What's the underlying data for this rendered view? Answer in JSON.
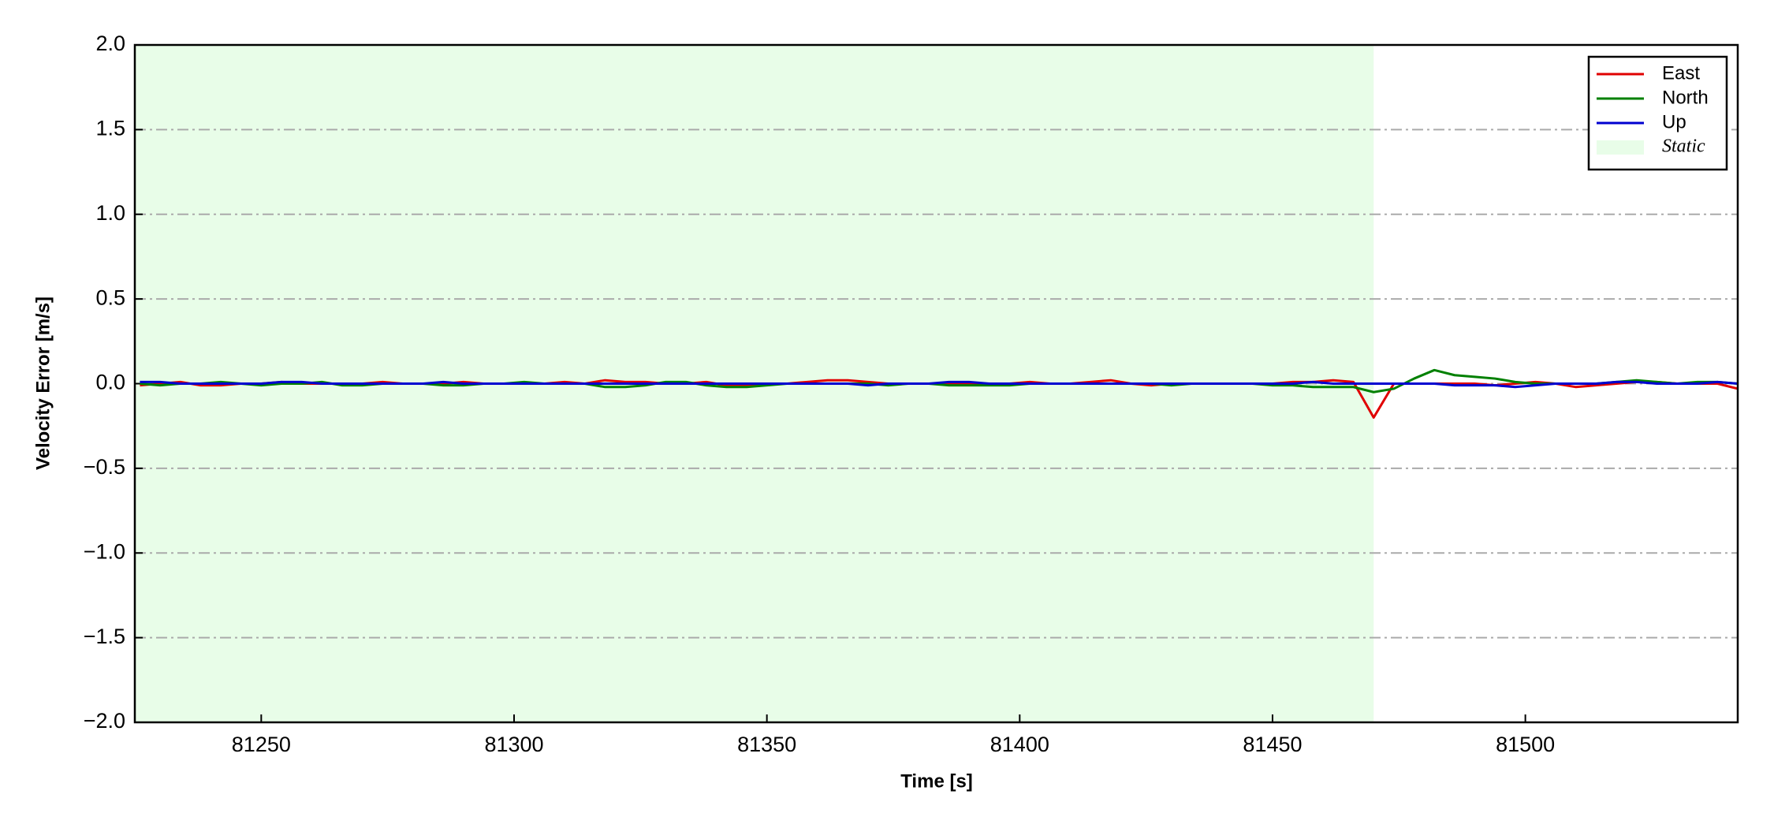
{
  "chart_data": {
    "type": "line",
    "xlabel": "Time [s]",
    "ylabel": "Velocity Error [m/s]",
    "xlim": [
      81225,
      81542
    ],
    "ylim": [
      -2.0,
      2.0
    ],
    "xticks": [
      81250,
      81300,
      81350,
      81400,
      81450,
      81500
    ],
    "yticks": [
      {
        "value": -2.0,
        "label": "−2.0"
      },
      {
        "value": -1.5,
        "label": "−1.5"
      },
      {
        "value": -1.0,
        "label": "−1.0"
      },
      {
        "value": -0.5,
        "label": "−0.5"
      },
      {
        "value": 0.0,
        "label": "0.0"
      },
      {
        "value": 0.5,
        "label": "0.5"
      },
      {
        "value": 1.0,
        "label": "1.0"
      },
      {
        "value": 1.5,
        "label": "1.5"
      },
      {
        "value": 2.0,
        "label": "2.0"
      }
    ],
    "grid": true,
    "legend": "upper right",
    "shaded": {
      "name": "Static",
      "color": "#e8fde8",
      "start": 81225,
      "end": 81470
    },
    "x": [
      81226,
      81230,
      81234,
      81238,
      81242,
      81246,
      81250,
      81254,
      81258,
      81262,
      81266,
      81270,
      81274,
      81278,
      81282,
      81286,
      81290,
      81294,
      81298,
      81302,
      81306,
      81310,
      81314,
      81318,
      81322,
      81326,
      81330,
      81334,
      81338,
      81342,
      81346,
      81350,
      81354,
      81358,
      81362,
      81366,
      81370,
      81374,
      81378,
      81382,
      81386,
      81390,
      81394,
      81398,
      81402,
      81406,
      81410,
      81414,
      81418,
      81422,
      81426,
      81430,
      81434,
      81438,
      81442,
      81446,
      81450,
      81454,
      81458,
      81462,
      81466,
      81470,
      81474,
      81478,
      81482,
      81486,
      81490,
      81494,
      81498,
      81502,
      81506,
      81510,
      81514,
      81518,
      81522,
      81526,
      81530,
      81534,
      81538,
      81542
    ],
    "series": [
      {
        "name": "East",
        "color": "#e00000",
        "values": [
          -0.01,
          0.0,
          0.01,
          -0.01,
          -0.01,
          0.0,
          0.0,
          0.01,
          0.0,
          0.0,
          0.0,
          0.0,
          0.01,
          0.0,
          0.0,
          0.0,
          0.01,
          0.0,
          0.0,
          0.0,
          0.0,
          0.01,
          0.0,
          0.02,
          0.01,
          0.01,
          0.0,
          0.0,
          0.01,
          -0.01,
          -0.01,
          0.0,
          0.0,
          0.01,
          0.02,
          0.02,
          0.01,
          0.0,
          0.0,
          0.0,
          0.0,
          0.0,
          0.0,
          0.0,
          0.01,
          0.0,
          0.0,
          0.01,
          0.02,
          0.0,
          -0.01,
          0.0,
          0.0,
          0.0,
          0.0,
          0.0,
          0.0,
          0.01,
          0.01,
          0.02,
          0.01,
          -0.2,
          0.0,
          0.0,
          0.0,
          0.0,
          0.0,
          -0.01,
          0.0,
          0.01,
          0.0,
          -0.02,
          -0.01,
          0.0,
          0.01,
          0.01,
          0.0,
          0.0,
          0.0,
          -0.03
        ]
      },
      {
        "name": "North",
        "color": "#008000",
        "values": [
          0.0,
          -0.01,
          0.0,
          0.0,
          0.01,
          0.0,
          -0.01,
          0.0,
          0.0,
          0.01,
          -0.01,
          -0.01,
          0.0,
          0.0,
          0.0,
          -0.01,
          -0.01,
          0.0,
          0.0,
          0.01,
          0.0,
          0.0,
          0.0,
          -0.02,
          -0.02,
          -0.01,
          0.01,
          0.01,
          -0.01,
          -0.02,
          -0.02,
          -0.01,
          0.0,
          0.0,
          0.0,
          0.0,
          0.0,
          -0.01,
          0.0,
          0.0,
          -0.01,
          -0.01,
          -0.01,
          -0.01,
          0.0,
          0.0,
          0.0,
          0.0,
          0.0,
          0.0,
          0.0,
          -0.01,
          0.0,
          0.0,
          0.0,
          0.0,
          -0.01,
          -0.01,
          -0.02,
          -0.02,
          -0.02,
          -0.05,
          -0.03,
          0.03,
          0.08,
          0.05,
          0.04,
          0.03,
          0.01,
          0.0,
          0.0,
          0.0,
          0.0,
          0.01,
          0.02,
          0.01,
          0.0,
          0.01,
          0.01,
          0.0
        ]
      },
      {
        "name": "Up",
        "color": "#0000d0",
        "values": [
          0.01,
          0.01,
          0.0,
          0.0,
          0.0,
          0.0,
          0.0,
          0.01,
          0.01,
          0.0,
          0.0,
          0.0,
          0.0,
          0.0,
          0.0,
          0.01,
          0.0,
          0.0,
          0.0,
          0.0,
          0.0,
          0.0,
          0.0,
          0.0,
          0.0,
          0.0,
          0.0,
          0.0,
          0.0,
          0.0,
          0.0,
          0.0,
          0.0,
          0.0,
          0.0,
          0.0,
          -0.01,
          0.0,
          0.0,
          0.0,
          0.01,
          0.01,
          0.0,
          0.0,
          0.0,
          0.0,
          0.0,
          0.0,
          0.0,
          0.0,
          0.0,
          0.0,
          0.0,
          0.0,
          0.0,
          0.0,
          0.0,
          0.0,
          0.01,
          0.0,
          0.0,
          0.0,
          0.0,
          0.0,
          0.0,
          -0.01,
          -0.01,
          -0.01,
          -0.02,
          -0.01,
          0.0,
          0.0,
          0.0,
          0.01,
          0.01,
          0.0,
          0.0,
          0.0,
          0.01,
          0.0
        ]
      }
    ]
  }
}
